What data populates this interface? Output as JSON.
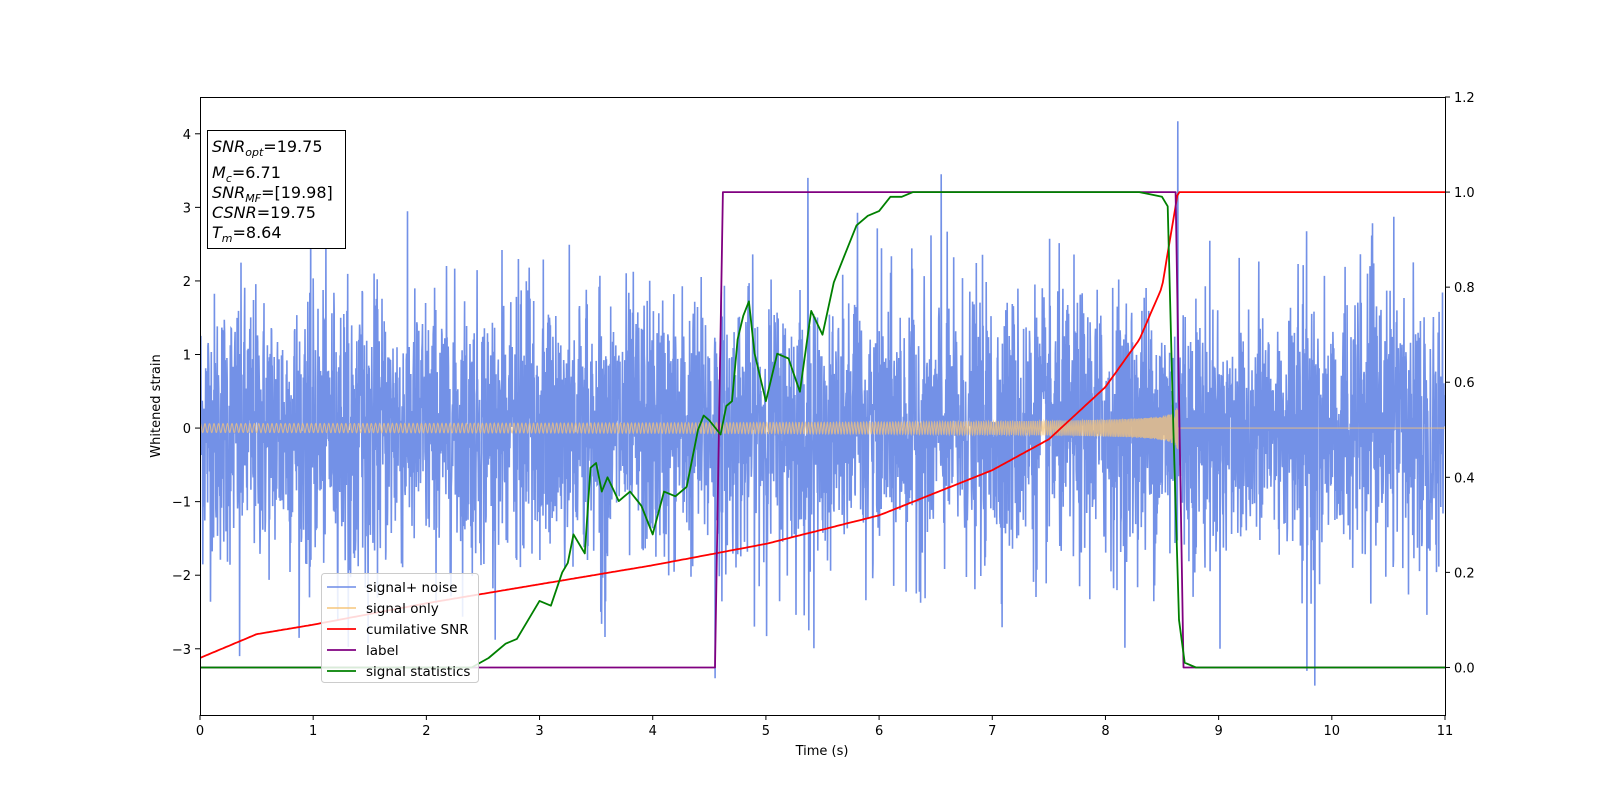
{
  "chart_data": {
    "type": "line",
    "xlabel": "Time (s)",
    "ylabel": "Whitened strain",
    "xlim": [
      0,
      11
    ],
    "ylim": [
      -3.9,
      4.5
    ],
    "y2lim": [
      -0.1,
      1.2
    ],
    "xticks": [
      "0",
      "1",
      "2",
      "3",
      "4",
      "5",
      "6",
      "7",
      "8",
      "9",
      "10",
      "11"
    ],
    "yticks": [
      "−3",
      "−2",
      "−1",
      "0",
      "1",
      "2",
      "3",
      "4"
    ],
    "y2ticks": [
      "0.0",
      "0.2",
      "0.4",
      "0.6",
      "0.8",
      "1.0",
      "1.2"
    ],
    "grid": false,
    "legend_position": "lower-left",
    "annotation": [
      {
        "base": "SNR",
        "sub": "opt",
        "value": "=19.75"
      },
      {
        "base": "M",
        "sub": "c",
        "value": "=6.71"
      },
      {
        "base": "SNR",
        "sub": "MF",
        "value": "=[19.98]"
      },
      {
        "base": "CSNR",
        "sub": "",
        "value": "=19.75"
      },
      {
        "base": "T",
        "sub": "m",
        "value": "=8.64"
      }
    ],
    "series": [
      {
        "name": "signal+ noise",
        "axis": "left",
        "color": "#6b8be6",
        "description": "whitened noise, approx. gaussian with std ~0.9, spikes to ~4.2 near t=8.64",
        "noise_std": 0.9,
        "spike_peaks": [
          {
            "x": 8.64,
            "y": 4.17
          },
          {
            "x": 9.85,
            "y": -3.5
          },
          {
            "x": 9.78,
            "y": -3.3
          },
          {
            "x": 0.35,
            "y": -3.1
          },
          {
            "x": 5.37,
            "y": 3.4
          },
          {
            "x": 4.55,
            "y": -3.4
          },
          {
            "x": 6.55,
            "y": 3.45
          }
        ]
      },
      {
        "name": "signal only",
        "axis": "left",
        "color": "#f5c47a",
        "description": "chirp, amplitude grows from ~0.06 to ~1.2 at merger t=8.64, then 0",
        "merger_time": 8.64,
        "amp_start": 0.06,
        "amp_peak": 1.15
      },
      {
        "name": "cumilative SNR",
        "axis": "right",
        "color": "#ff0000",
        "x": [
          0,
          0.5,
          1,
          2,
          3,
          4,
          5,
          6,
          7,
          7.5,
          8,
          8.3,
          8.5,
          8.64,
          11
        ],
        "y": [
          0.02,
          0.07,
          0.09,
          0.135,
          0.175,
          0.215,
          0.26,
          0.32,
          0.415,
          0.48,
          0.59,
          0.69,
          0.8,
          1.0,
          1.0
        ]
      },
      {
        "name": "label",
        "axis": "right",
        "color": "#800080",
        "x": [
          0,
          4.55,
          4.62,
          8.62,
          8.69,
          11
        ],
        "y": [
          0,
          0,
          1,
          1,
          0,
          0
        ]
      },
      {
        "name": "signal statistics",
        "axis": "right",
        "color": "#008000",
        "x": [
          0,
          2.4,
          2.55,
          2.7,
          2.8,
          2.9,
          3.0,
          3.1,
          3.2,
          3.25,
          3.3,
          3.4,
          3.45,
          3.5,
          3.55,
          3.6,
          3.7,
          3.75,
          3.8,
          3.9,
          4.0,
          4.1,
          4.2,
          4.3,
          4.4,
          4.45,
          4.5,
          4.6,
          4.65,
          4.7,
          4.75,
          4.8,
          4.85,
          4.9,
          5.0,
          5.1,
          5.2,
          5.3,
          5.4,
          5.5,
          5.6,
          5.7,
          5.8,
          5.9,
          6.0,
          6.1,
          6.2,
          6.3,
          6.5,
          7.0,
          7.5,
          8.0,
          8.3,
          8.5,
          8.55,
          8.6,
          8.65,
          8.7,
          8.8,
          11
        ],
        "y": [
          0,
          0.0,
          0.02,
          0.05,
          0.06,
          0.1,
          0.14,
          0.13,
          0.2,
          0.22,
          0.28,
          0.24,
          0.42,
          0.43,
          0.37,
          0.4,
          0.35,
          0.36,
          0.37,
          0.34,
          0.28,
          0.37,
          0.36,
          0.38,
          0.5,
          0.53,
          0.52,
          0.49,
          0.55,
          0.56,
          0.69,
          0.74,
          0.77,
          0.66,
          0.56,
          0.66,
          0.65,
          0.58,
          0.75,
          0.7,
          0.81,
          0.87,
          0.93,
          0.95,
          0.96,
          0.99,
          0.99,
          1.0,
          1.0,
          1.0,
          1.0,
          1.0,
          1.0,
          0.99,
          0.97,
          0.5,
          0.1,
          0.01,
          0.0,
          0.0
        ]
      }
    ]
  }
}
